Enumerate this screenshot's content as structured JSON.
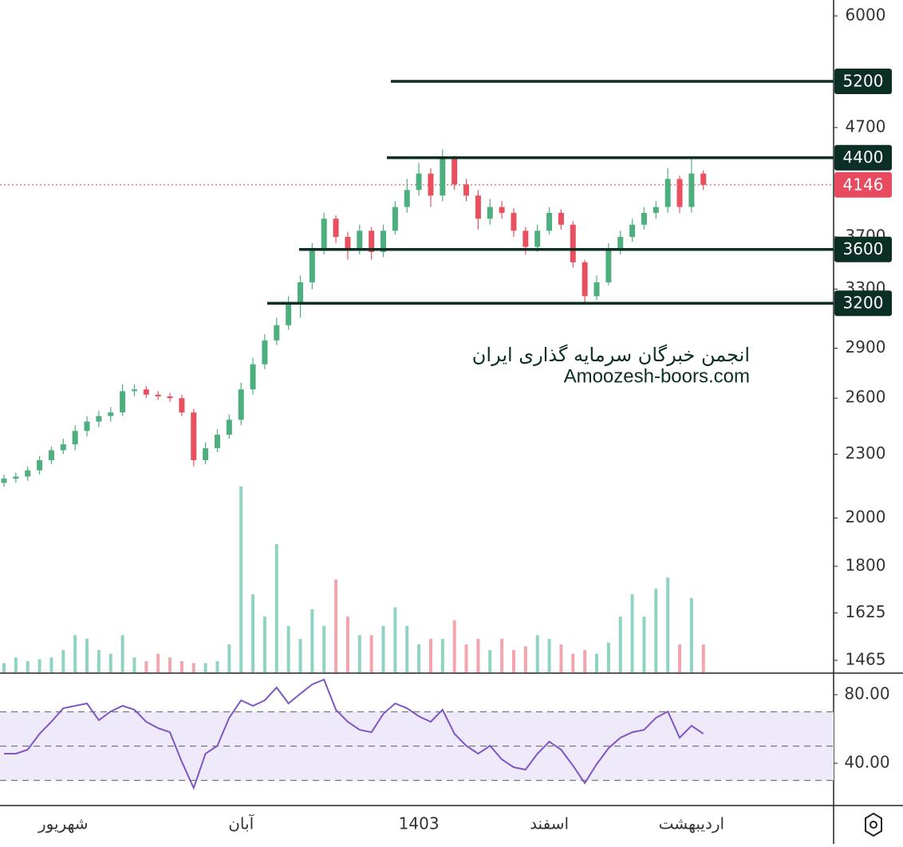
{
  "chart_data": {
    "type": "candlestick",
    "annotations": [
      "انجمن خبرگان سرمایه گذاری ایران",
      "Amoozesh-boors.com"
    ],
    "categories": [
      null,
      null,
      null,
      null,
      null,
      "شهریور",
      null,
      null,
      null,
      null,
      null,
      null,
      null,
      null,
      null,
      null,
      null,
      null,
      null,
      null,
      "آبان",
      null,
      null,
      null,
      null,
      null,
      null,
      null,
      null,
      null,
      null,
      null,
      null,
      null,
      null,
      "1403",
      null,
      null,
      null,
      null,
      null,
      null,
      null,
      null,
      null,
      null,
      "اسفند",
      null,
      null,
      null,
      null,
      null,
      null,
      null,
      null,
      null,
      null,
      null,
      "اردیبهشت",
      null
    ],
    "open": [
      2160,
      2180,
      2190,
      2220,
      2270,
      2320,
      2350,
      2420,
      2470,
      2500,
      2520,
      2640,
      2650,
      2620,
      2610,
      2600,
      2520,
      2270,
      2330,
      2400,
      2480,
      2650,
      2800,
      2950,
      3050,
      3200,
      3350,
      3600,
      3850,
      3700,
      3600,
      3750,
      3580,
      3750,
      3950,
      4100,
      4250,
      4050,
      4400,
      4150,
      4050,
      3850,
      3950,
      3900,
      3750,
      3620,
      3750,
      3900,
      3800,
      3500,
      3250,
      3350,
      3600,
      3700,
      3800,
      3900,
      3950,
      4200,
      3950,
      4250
    ],
    "high": [
      2200,
      2210,
      2240,
      2290,
      2340,
      2380,
      2450,
      2500,
      2530,
      2550,
      2680,
      2680,
      2670,
      2640,
      2630,
      2620,
      2540,
      2360,
      2430,
      2510,
      2690,
      2840,
      2990,
      3100,
      3250,
      3400,
      3650,
      3900,
      3880,
      3740,
      3800,
      3780,
      3800,
      4000,
      4200,
      4350,
      4300,
      4480,
      4420,
      4200,
      4100,
      4020,
      4000,
      3940,
      3780,
      3800,
      3950,
      3930,
      3830,
      3520,
      3400,
      3650,
      3750,
      3850,
      3950,
      4000,
      4300,
      4230,
      4400,
      4280
    ],
    "low": [
      2140,
      2160,
      2170,
      2200,
      2250,
      2300,
      2320,
      2390,
      2440,
      2470,
      2500,
      2610,
      2600,
      2590,
      2580,
      2500,
      2240,
      2250,
      2310,
      2380,
      2450,
      2620,
      2770,
      2920,
      3020,
      3100,
      3300,
      3560,
      3650,
      3520,
      3560,
      3520,
      3540,
      3720,
      3900,
      4050,
      3950,
      4000,
      4100,
      4000,
      3760,
      3800,
      3850,
      3700,
      3560,
      3580,
      3720,
      3760,
      3460,
      3200,
      3220,
      3330,
      3560,
      3660,
      3760,
      3850,
      3900,
      3900,
      3900,
      4100
    ],
    "close": [
      2180,
      2190,
      2220,
      2270,
      2320,
      2350,
      2420,
      2470,
      2500,
      2520,
      2640,
      2650,
      2620,
      2610,
      2600,
      2520,
      2270,
      2330,
      2400,
      2480,
      2650,
      2800,
      2950,
      3050,
      3200,
      3350,
      3600,
      3850,
      3700,
      3600,
      3750,
      3580,
      3750,
      3950,
      4100,
      4250,
      4050,
      4400,
      4150,
      4050,
      3850,
      3950,
      3900,
      3750,
      3620,
      3750,
      3900,
      3800,
      3500,
      3250,
      3350,
      3600,
      3700,
      3800,
      3900,
      3950,
      4200,
      3950,
      4250,
      4146
    ],
    "up_color": "#4caf7d",
    "down_color": "#e8505f",
    "log_scale": true,
    "ylim": [
      1427,
      6213
    ],
    "yticks": [
      6000,
      4700,
      3700,
      3300,
      2900,
      2600,
      2300,
      2000,
      1800,
      1625,
      1465
    ],
    "levels": [
      5200,
      4400,
      3600,
      3200
    ],
    "level_color": "#0b2e25",
    "last_price": 4146,
    "last_price_color": "#e84a5f",
    "volume": [
      5,
      8,
      6,
      7,
      8,
      12,
      20,
      18,
      12,
      10,
      20,
      8,
      6,
      10,
      8,
      6,
      5,
      5,
      6,
      15,
      100,
      42,
      30,
      69,
      25,
      18,
      34,
      25,
      50,
      30,
      20,
      20,
      25,
      35,
      25,
      15,
      18,
      18,
      28,
      15,
      18,
      12,
      18,
      12,
      14,
      20,
      18,
      15,
      10,
      12,
      10,
      16,
      30,
      42,
      30,
      45,
      51,
      15,
      40,
      15
    ],
    "vlim": [
      0,
      100
    ],
    "volume_up_color": "#8fd3c3",
    "volume_down_color": "#f3a5ae",
    "rsi": [
      45.6,
      45.6,
      47.9,
      57.2,
      64.2,
      72.1,
      73.5,
      74.9,
      65.1,
      70.2,
      73.5,
      71.2,
      64.2,
      60.5,
      58.1,
      40.9,
      25.6,
      45.6,
      50.2,
      66.5,
      76.7,
      73.5,
      76.7,
      84.2,
      74.9,
      80.5,
      86.0,
      88.8,
      71.2,
      64.2,
      59.5,
      58.1,
      68.8,
      74.9,
      72.1,
      67.4,
      64.2,
      71.2,
      57.2,
      50.2,
      45.6,
      50.2,
      42.3,
      37.7,
      36.3,
      45.6,
      52.6,
      47.9,
      38.6,
      28.4,
      39.5,
      48.8,
      54.9,
      58.1,
      59.5,
      66.5,
      70.2,
      54.9,
      61.9,
      57.2
    ],
    "rsi_color": "#7e57c2",
    "rsi_lim": [
      15.35,
      92.1
    ],
    "rsi_ticks": [
      {
        "value": 80,
        "label": "80.00"
      },
      {
        "value": 40,
        "label": "40.00"
      }
    ],
    "rsi_band": [
      30,
      70
    ],
    "rsi_levels": [
      30,
      50,
      70
    ]
  }
}
